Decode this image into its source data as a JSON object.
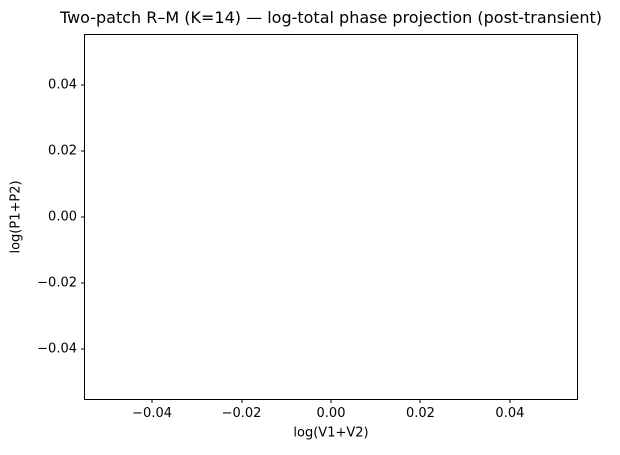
{
  "colors": {
    "background": "#ffffff",
    "foreground": "#000000"
  },
  "chart_data": {
    "type": "line",
    "title": "Two-patch R–M (K=14) — log-total phase projection (post-transient)",
    "xlabel": "log(V1+V2)",
    "ylabel": "log(P1+P2)",
    "xlim": [
      -0.055,
      0.055
    ],
    "ylim": [
      -0.055,
      0.055
    ],
    "x_ticks": [
      -0.04,
      -0.02,
      0,
      0.02,
      0.04
    ],
    "x_tick_labels": [
      "−0.04",
      "−0.02",
      "0.00",
      "0.02",
      "0.04"
    ],
    "y_ticks": [
      -0.04,
      -0.02,
      0,
      0.02,
      0.04
    ],
    "y_tick_labels": [
      "−0.04",
      "−0.02",
      "0.00",
      "0.02",
      "0.04"
    ],
    "series": [],
    "grid": false,
    "legend": null,
    "plot_area_empty": true
  }
}
